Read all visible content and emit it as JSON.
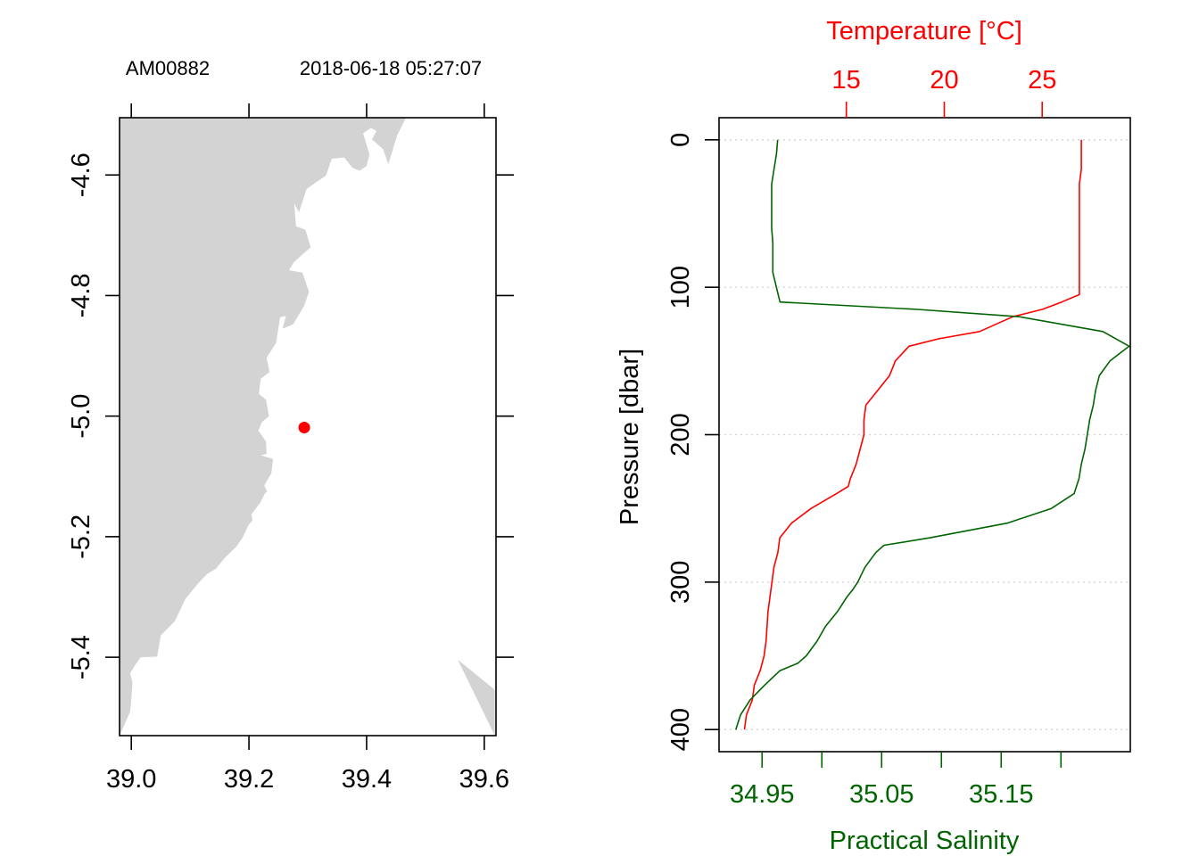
{
  "colors": {
    "temperature": "#ff0000",
    "salinity": "#006400",
    "land": "#d3d3d3",
    "station": "#ff0000",
    "grid": "#d3d3d3",
    "axis": "#000000"
  },
  "chart_data": [
    {
      "type": "scatter",
      "panel": "map",
      "station_id": "AM00882",
      "datetime": "2018-06-18 05:27:07",
      "xlim": [
        38.98,
        39.62
      ],
      "ylim": [
        -5.53,
        -4.505
      ],
      "x_ticks": [
        39.0,
        39.2,
        39.4,
        39.6
      ],
      "x_tick_labels": [
        "39.0",
        "39.2",
        "39.4",
        "39.6"
      ],
      "y_ticks": [
        -4.6,
        -4.8,
        -5.0,
        -5.2,
        -5.4
      ],
      "y_tick_labels": [
        "-4.6",
        "-4.8",
        "-5.0",
        "-5.2",
        "-5.4"
      ],
      "station": {
        "lon": 39.294,
        "lat": -5.019
      },
      "coastline": [
        [
          38.98,
          -4.505
        ],
        [
          39.467,
          -4.505
        ],
        [
          39.452,
          -4.534
        ],
        [
          39.437,
          -4.582
        ],
        [
          39.428,
          -4.557
        ],
        [
          39.409,
          -4.541
        ],
        [
          39.417,
          -4.527
        ],
        [
          39.407,
          -4.522
        ],
        [
          39.394,
          -4.531
        ],
        [
          39.405,
          -4.566
        ],
        [
          39.4,
          -4.585
        ],
        [
          39.388,
          -4.593
        ],
        [
          39.376,
          -4.588
        ],
        [
          39.362,
          -4.571
        ],
        [
          39.341,
          -4.573
        ],
        [
          39.331,
          -4.601
        ],
        [
          39.298,
          -4.623
        ],
        [
          39.291,
          -4.644
        ],
        [
          39.285,
          -4.662
        ],
        [
          39.277,
          -4.647
        ],
        [
          39.28,
          -4.685
        ],
        [
          39.296,
          -4.691
        ],
        [
          39.305,
          -4.72
        ],
        [
          39.292,
          -4.731
        ],
        [
          39.276,
          -4.745
        ],
        [
          39.268,
          -4.758
        ],
        [
          39.291,
          -4.762
        ],
        [
          39.302,
          -4.794
        ],
        [
          39.294,
          -4.817
        ],
        [
          39.275,
          -4.848
        ],
        [
          39.257,
          -4.855
        ],
        [
          39.263,
          -4.834
        ],
        [
          39.253,
          -4.836
        ],
        [
          39.246,
          -4.879
        ],
        [
          39.23,
          -4.903
        ],
        [
          39.235,
          -4.927
        ],
        [
          39.22,
          -4.938
        ],
        [
          39.218,
          -4.954
        ],
        [
          39.217,
          -4.963
        ],
        [
          39.229,
          -4.973
        ],
        [
          39.234,
          -5.0
        ],
        [
          39.222,
          -5.01
        ],
        [
          39.216,
          -5.024
        ],
        [
          39.229,
          -5.042
        ],
        [
          39.23,
          -5.063
        ],
        [
          39.22,
          -5.065
        ],
        [
          39.241,
          -5.071
        ],
        [
          39.238,
          -5.095
        ],
        [
          39.226,
          -5.115
        ],
        [
          39.231,
          -5.125
        ],
        [
          39.227,
          -5.128
        ],
        [
          39.219,
          -5.144
        ],
        [
          39.204,
          -5.163
        ],
        [
          39.206,
          -5.173
        ],
        [
          39.199,
          -5.181
        ],
        [
          39.189,
          -5.202
        ],
        [
          39.178,
          -5.217
        ],
        [
          39.159,
          -5.235
        ],
        [
          39.144,
          -5.253
        ],
        [
          39.129,
          -5.262
        ],
        [
          39.115,
          -5.276
        ],
        [
          39.092,
          -5.303
        ],
        [
          39.074,
          -5.34
        ],
        [
          39.05,
          -5.364
        ],
        [
          39.044,
          -5.399
        ],
        [
          39.016,
          -5.4
        ],
        [
          39.005,
          -5.415
        ],
        [
          38.998,
          -5.427
        ],
        [
          39.002,
          -5.442
        ],
        [
          39.0,
          -5.47
        ],
        [
          38.998,
          -5.49
        ],
        [
          38.98,
          -5.53
        ]
      ],
      "coastline_se": [
        [
          39.555,
          -5.404
        ],
        [
          39.618,
          -5.454
        ],
        [
          39.618,
          -5.53
        ],
        [
          39.555,
          -5.404
        ]
      ]
    },
    {
      "type": "line",
      "panel": "profile",
      "ylabel": "Pressure [dbar]",
      "ylim": [
        415,
        -15
      ],
      "y_ticks": [
        0,
        100,
        200,
        300,
        400
      ],
      "y_tick_labels": [
        "0",
        "100",
        "200",
        "300",
        "400"
      ],
      "grid": true,
      "top_axis": {
        "label": "Temperature [°C]",
        "xlim": [
          8.5,
          29.5
        ],
        "ticks": [
          15,
          20,
          25
        ],
        "tick_labels": [
          "15",
          "20",
          "25"
        ]
      },
      "bottom_axis": {
        "label": "Practical Salinity",
        "xlim": [
          34.914,
          35.258
        ],
        "ticks": [
          34.95,
          35.0,
          35.05,
          35.1,
          35.15,
          35.2
        ],
        "tick_labels": [
          "34.95",
          "",
          "35.05",
          "",
          "35.15",
          ""
        ]
      },
      "series": [
        {
          "name": "Temperature [°C]",
          "axis": "top",
          "color": "#ff0000",
          "x": [
            27.0,
            27.0,
            27.0,
            26.9,
            26.9,
            26.9,
            26.9,
            26.9,
            26.9,
            26.9,
            26.9,
            26.9,
            26.0,
            25.0,
            23.5,
            21.8,
            19.7,
            18.2,
            17.5,
            17.2,
            16.6,
            16.0,
            15.9,
            15.9,
            15.7,
            15.5,
            15.2,
            15.1,
            14.5,
            13.2,
            12.2,
            11.6,
            11.5,
            11.3,
            11.2,
            11.0,
            10.9,
            10.8,
            10.6,
            10.3,
            10.2,
            9.9,
            9.8
          ],
          "y": [
            0,
            10,
            20,
            30,
            40,
            50,
            60,
            70,
            80,
            90,
            100,
            105,
            110,
            115,
            120,
            130,
            135,
            140,
            150,
            160,
            170,
            180,
            190,
            200,
            210,
            220,
            230,
            235,
            240,
            250,
            260,
            270,
            280,
            290,
            300,
            320,
            340,
            350,
            360,
            370,
            380,
            390,
            400
          ]
        },
        {
          "name": "Practical Salinity",
          "axis": "bottom",
          "color": "#006400",
          "x": [
            34.963,
            34.962,
            34.96,
            34.958,
            34.958,
            34.958,
            34.958,
            34.959,
            34.959,
            34.959,
            34.962,
            34.965,
            35.08,
            35.165,
            35.235,
            35.257,
            35.241,
            35.232,
            35.229,
            35.227,
            35.224,
            35.222,
            35.22,
            35.217,
            35.215,
            35.213,
            35.211,
            35.192,
            35.155,
            35.09,
            35.052,
            35.045,
            35.036,
            35.03,
            35.026,
            35.021,
            35.013,
            35.003,
            34.996,
            34.987,
            34.98,
            34.965,
            34.952,
            34.94,
            34.932,
            34.928
          ],
          "y": [
            0,
            10,
            20,
            30,
            40,
            50,
            60,
            70,
            80,
            90,
            100,
            110,
            115,
            120,
            130,
            140,
            150,
            160,
            170,
            180,
            190,
            200,
            210,
            220,
            230,
            235,
            240,
            250,
            260,
            270,
            275,
            280,
            290,
            300,
            305,
            310,
            320,
            330,
            340,
            350,
            355,
            360,
            370,
            380,
            390,
            400
          ]
        }
      ]
    }
  ]
}
